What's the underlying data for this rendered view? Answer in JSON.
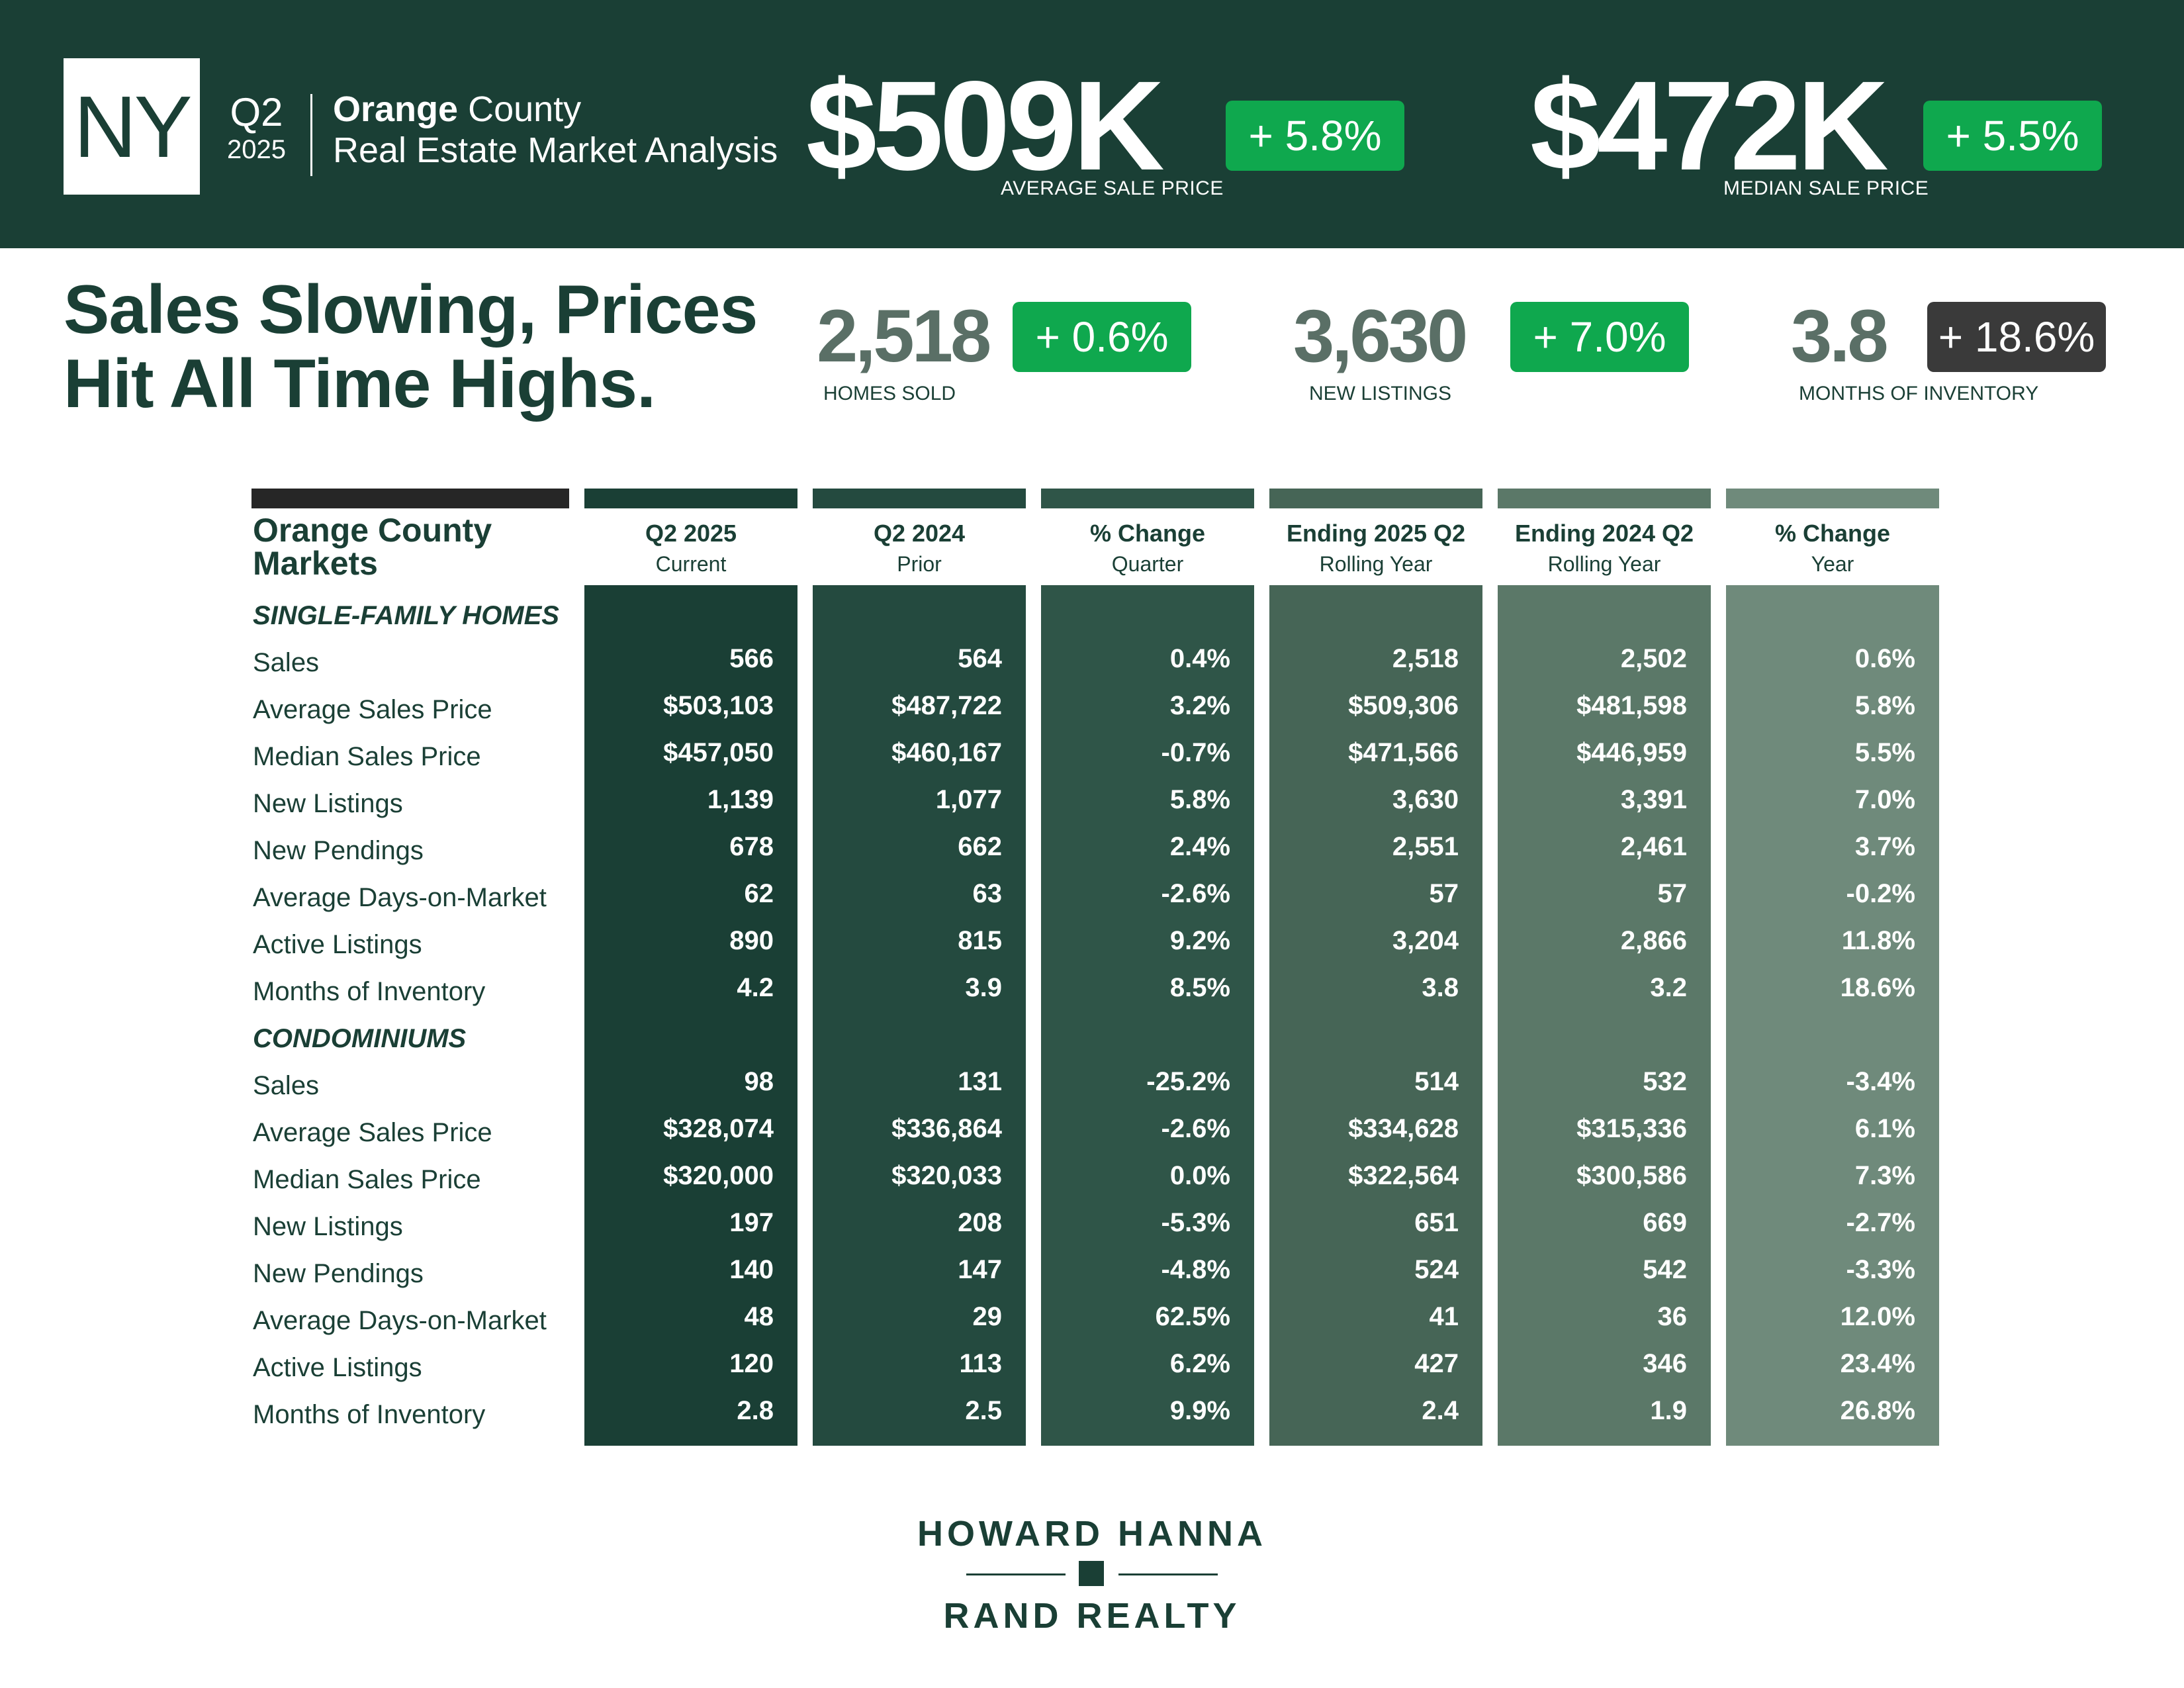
{
  "header": {
    "state_badge": "NY",
    "quarter": "Q2",
    "year": "2025",
    "county_bold": "Orange",
    "county_rest": " County",
    "subtitle": "Real Estate Market Analysis",
    "avg_price": "$509K",
    "avg_change": "+ 5.8%",
    "avg_label": "AVERAGE SALE PRICE",
    "median_price": "$472K",
    "median_change": "+ 5.5%",
    "median_label": "MEDIAN SALE PRICE"
  },
  "headline": {
    "line1": "Sales Slowing, Prices",
    "line2": "Hit All Time Highs."
  },
  "kpis": [
    {
      "value": "2,518",
      "change": "+ 0.6%",
      "label": "HOMES SOLD",
      "change_color": "#0fa84e"
    },
    {
      "value": "3,630",
      "change": "+ 7.0%",
      "label": "NEW LISTINGS",
      "change_color": "#0fa84e"
    },
    {
      "value": "3.8",
      "change": "+ 18.6%",
      "label": "MONTHS OF INVENTORY",
      "change_color": "#3a3a3a"
    }
  ],
  "table": {
    "title_line1": "Orange County",
    "title_line2": "Markets",
    "columns": [
      {
        "h1": "Q2 2025",
        "h2": "Current",
        "color": "#1a3f35"
      },
      {
        "h1": "Q2 2024",
        "h2": "Prior",
        "color": "#244a3f"
      },
      {
        "h1": "% Change",
        "h2": "Quarter",
        "color": "#2f5548"
      },
      {
        "h1": "Ending 2025 Q2",
        "h2": "Rolling Year",
        "color": "#466556"
      },
      {
        "h1": "Ending 2024 Q2",
        "h2": "Rolling Year",
        "color": "#5b7868"
      },
      {
        "h1": "% Change",
        "h2": "Year",
        "color": "#6f8a7b"
      }
    ],
    "sections": [
      {
        "name": "SINGLE-FAMILY HOMES",
        "rows": [
          {
            "label": "Sales",
            "values": [
              "566",
              "564",
              "0.4%",
              "2,518",
              "2,502",
              "0.6%"
            ]
          },
          {
            "label": "Average Sales Price",
            "values": [
              "$503,103",
              "$487,722",
              "3.2%",
              "$509,306",
              "$481,598",
              "5.8%"
            ]
          },
          {
            "label": "Median Sales Price",
            "values": [
              "$457,050",
              "$460,167",
              "-0.7%",
              "$471,566",
              "$446,959",
              "5.5%"
            ]
          },
          {
            "label": "New Listings",
            "values": [
              "1,139",
              "1,077",
              "5.8%",
              "3,630",
              "3,391",
              "7.0%"
            ]
          },
          {
            "label": "New Pendings",
            "values": [
              "678",
              "662",
              "2.4%",
              "2,551",
              "2,461",
              "3.7%"
            ]
          },
          {
            "label": "Average Days-on-Market",
            "values": [
              "62",
              "63",
              "-2.6%",
              "57",
              "57",
              "-0.2%"
            ]
          },
          {
            "label": "Active Listings",
            "values": [
              "890",
              "815",
              "9.2%",
              "3,204",
              "2,866",
              "11.8%"
            ]
          },
          {
            "label": "Months of Inventory",
            "values": [
              "4.2",
              "3.9",
              "8.5%",
              "3.8",
              "3.2",
              "18.6%"
            ]
          }
        ]
      },
      {
        "name": "CONDOMINIUMS",
        "rows": [
          {
            "label": "Sales",
            "values": [
              "98",
              "131",
              "-25.2%",
              "514",
              "532",
              "-3.4%"
            ]
          },
          {
            "label": "Average Sales Price",
            "values": [
              "$328,074",
              "$336,864",
              "-2.6%",
              "$334,628",
              "$315,336",
              "6.1%"
            ]
          },
          {
            "label": "Median Sales Price",
            "values": [
              "$320,000",
              "$320,033",
              "0.0%",
              "$322,564",
              "$300,586",
              "7.3%"
            ]
          },
          {
            "label": "New Listings",
            "values": [
              "197",
              "208",
              "-5.3%",
              "651",
              "669",
              "-2.7%"
            ]
          },
          {
            "label": "New Pendings",
            "values": [
              "140",
              "147",
              "-4.8%",
              "524",
              "542",
              "-3.3%"
            ]
          },
          {
            "label": "Average Days-on-Market",
            "values": [
              "48",
              "29",
              "62.5%",
              "41",
              "36",
              "12.0%"
            ]
          },
          {
            "label": "Active Listings",
            "values": [
              "120",
              "113",
              "6.2%",
              "427",
              "346",
              "23.4%"
            ]
          },
          {
            "label": "Months of Inventory",
            "values": [
              "2.8",
              "2.5",
              "9.9%",
              "2.4",
              "1.9",
              "26.8%"
            ]
          }
        ]
      }
    ]
  },
  "footer": {
    "brand_top": "HOWARD HANNA",
    "brand_bottom": "RAND REALTY"
  },
  "colors": {
    "header_bg": "#1a3f35",
    "accent_green": "#0fa84e",
    "dark_badge": "#3a3a3a",
    "label_bar": "#262626"
  }
}
